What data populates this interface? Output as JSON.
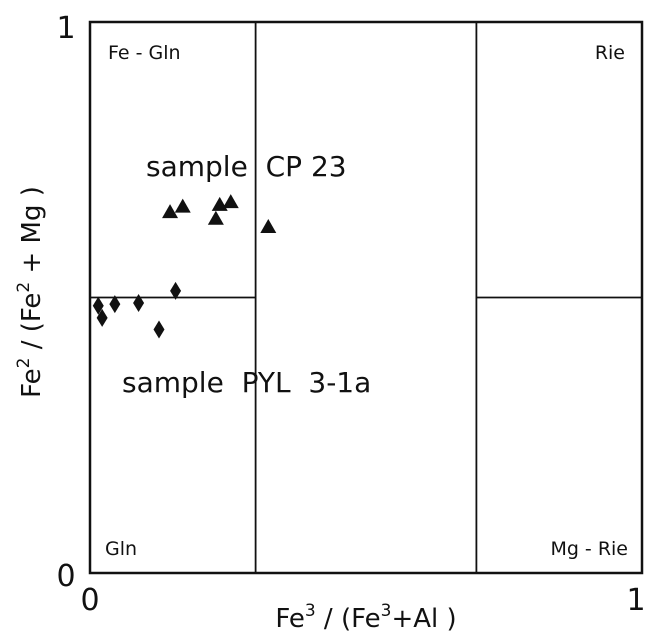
{
  "chart_data": {
    "type": "scatter",
    "xlabel": {
      "parts": [
        "Fe",
        "3",
        " / (Fe",
        "3",
        "+Al )"
      ]
    },
    "ylabel": {
      "parts": [
        "Fe",
        "2",
        " / (Fe",
        "2",
        " + Mg )"
      ]
    },
    "xlim": [
      0,
      1
    ],
    "ylim": [
      0,
      1
    ],
    "x_ticks": [
      "0",
      "1"
    ],
    "y_ticks": [
      "0",
      "1"
    ],
    "fields": [
      "Fe - Gln",
      "Rie",
      "Gln",
      "Mg - Rie"
    ],
    "field_boundaries": {
      "x": [
        0.3,
        0.7
      ],
      "y": 0.5
    },
    "annotations": [
      "sample  CP 23",
      "sample  PYL  3-1a"
    ],
    "series": [
      {
        "name": "sample CP 23",
        "marker": "triangle",
        "points": [
          {
            "x": 0.145,
            "y": 0.655
          },
          {
            "x": 0.168,
            "y": 0.665
          },
          {
            "x": 0.228,
            "y": 0.643
          },
          {
            "x": 0.235,
            "y": 0.668
          },
          {
            "x": 0.255,
            "y": 0.673
          },
          {
            "x": 0.323,
            "y": 0.628
          }
        ]
      },
      {
        "name": "sample PYL 3-1a",
        "marker": "diamond",
        "points": [
          {
            "x": 0.015,
            "y": 0.485
          },
          {
            "x": 0.022,
            "y": 0.463
          },
          {
            "x": 0.045,
            "y": 0.488
          },
          {
            "x": 0.088,
            "y": 0.49
          },
          {
            "x": 0.125,
            "y": 0.442
          },
          {
            "x": 0.155,
            "y": 0.512
          }
        ]
      }
    ]
  }
}
